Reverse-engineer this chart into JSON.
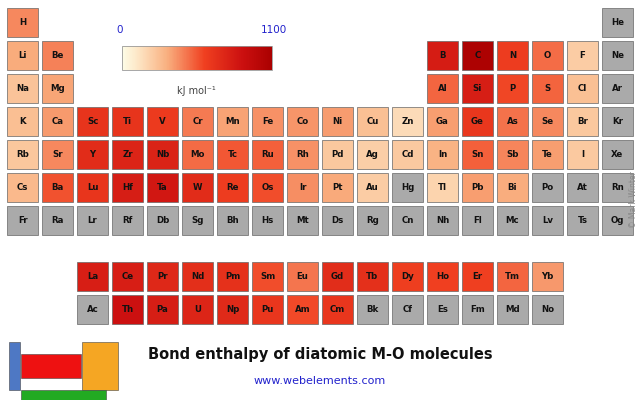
{
  "title": "Bond enthalpy of diatomic M-O molecules",
  "subtitle": "www.webelements.com",
  "colorbar_label": "kJ mol⁻¹",
  "colorbar_min": 0,
  "colorbar_max": 1100,
  "background": "#ffffff",
  "no_data_color": "#aaaaaa",
  "elements": {
    "H": {
      "row": 1,
      "col": 1,
      "value": 428
    },
    "He": {
      "row": 1,
      "col": 18,
      "value": null
    },
    "Li": {
      "row": 2,
      "col": 1,
      "value": 341
    },
    "Be": {
      "row": 2,
      "col": 2,
      "value": 444
    },
    "B": {
      "row": 2,
      "col": 13,
      "value": 809
    },
    "C": {
      "row": 2,
      "col": 14,
      "value": 1076
    },
    "N": {
      "row": 2,
      "col": 15,
      "value": 631
    },
    "O": {
      "row": 2,
      "col": 16,
      "value": 498
    },
    "F": {
      "row": 2,
      "col": 17,
      "value": 220
    },
    "Ne": {
      "row": 2,
      "col": 18,
      "value": null
    },
    "Na": {
      "row": 3,
      "col": 1,
      "value": 257
    },
    "Mg": {
      "row": 3,
      "col": 2,
      "value": 358
    },
    "Al": {
      "row": 3,
      "col": 13,
      "value": 512
    },
    "Si": {
      "row": 3,
      "col": 14,
      "value": 800
    },
    "P": {
      "row": 3,
      "col": 15,
      "value": 589
    },
    "S": {
      "row": 3,
      "col": 16,
      "value": 517
    },
    "Cl": {
      "row": 3,
      "col": 17,
      "value": 268
    },
    "Ar": {
      "row": 3,
      "col": 18,
      "value": null
    },
    "K": {
      "row": 4,
      "col": 1,
      "value": 271
    },
    "Ca": {
      "row": 4,
      "col": 2,
      "value": 383
    },
    "Sc": {
      "row": 4,
      "col": 3,
      "value": 671
    },
    "Ti": {
      "row": 4,
      "col": 4,
      "value": 672
    },
    "V": {
      "row": 4,
      "col": 5,
      "value": 637
    },
    "Cr": {
      "row": 4,
      "col": 6,
      "value": 461
    },
    "Mn": {
      "row": 4,
      "col": 7,
      "value": 362
    },
    "Fe": {
      "row": 4,
      "col": 8,
      "value": 407
    },
    "Co": {
      "row": 4,
      "col": 9,
      "value": 397
    },
    "Ni": {
      "row": 4,
      "col": 10,
      "value": 382
    },
    "Cu": {
      "row": 4,
      "col": 11,
      "value": 269
    },
    "Zn": {
      "row": 4,
      "col": 12,
      "value": 161
    },
    "Ga": {
      "row": 4,
      "col": 13,
      "value": 374
    },
    "Ge": {
      "row": 4,
      "col": 14,
      "value": 657
    },
    "As": {
      "row": 4,
      "col": 15,
      "value": 484
    },
    "Se": {
      "row": 4,
      "col": 16,
      "value": 429
    },
    "Br": {
      "row": 4,
      "col": 17,
      "value": 237
    },
    "Kr": {
      "row": 4,
      "col": 18,
      "value": null
    },
    "Rb": {
      "row": 5,
      "col": 1,
      "value": 243
    },
    "Sr": {
      "row": 5,
      "col": 2,
      "value": 426
    },
    "Y": {
      "row": 5,
      "col": 3,
      "value": 719
    },
    "Zr": {
      "row": 5,
      "col": 4,
      "value": 766
    },
    "Nb": {
      "row": 5,
      "col": 5,
      "value": 771
    },
    "Mo": {
      "row": 5,
      "col": 6,
      "value": 502
    },
    "Tc": {
      "row": 5,
      "col": 7,
      "value": 548
    },
    "Ru": {
      "row": 5,
      "col": 8,
      "value": 528
    },
    "Rh": {
      "row": 5,
      "col": 9,
      "value": 405
    },
    "Pd": {
      "row": 5,
      "col": 10,
      "value": 238
    },
    "Ag": {
      "row": 5,
      "col": 11,
      "value": 213
    },
    "Cd": {
      "row": 5,
      "col": 12,
      "value": 236
    },
    "In": {
      "row": 5,
      "col": 13,
      "value": 320
    },
    "Sn": {
      "row": 5,
      "col": 14,
      "value": 528
    },
    "Sb": {
      "row": 5,
      "col": 15,
      "value": 434
    },
    "Te": {
      "row": 5,
      "col": 16,
      "value": 377
    },
    "I": {
      "row": 5,
      "col": 17,
      "value": 234
    },
    "Xe": {
      "row": 5,
      "col": 18,
      "value": null
    },
    "Cs": {
      "row": 6,
      "col": 1,
      "value": 293
    },
    "Ba": {
      "row": 6,
      "col": 2,
      "value": 562
    },
    "Lu": {
      "row": 6,
      "col": 3,
      "value": 669
    },
    "Hf": {
      "row": 6,
      "col": 4,
      "value": 801
    },
    "Ta": {
      "row": 6,
      "col": 5,
      "value": 839
    },
    "W": {
      "row": 6,
      "col": 6,
      "value": 720
    },
    "Re": {
      "row": 6,
      "col": 7,
      "value": 627
    },
    "Os": {
      "row": 6,
      "col": 8,
      "value": 575
    },
    "Ir": {
      "row": 6,
      "col": 9,
      "value": 414
    },
    "Pt": {
      "row": 6,
      "col": 10,
      "value": 346
    },
    "Au": {
      "row": 6,
      "col": 11,
      "value": 223
    },
    "Hg": {
      "row": 6,
      "col": 12,
      "value": null
    },
    "Tl": {
      "row": 6,
      "col": 13,
      "value": 193
    },
    "Pb": {
      "row": 6,
      "col": 14,
      "value": 374
    },
    "Bi": {
      "row": 6,
      "col": 15,
      "value": 337
    },
    "Po": {
      "row": 6,
      "col": 16,
      "value": null
    },
    "At": {
      "row": 6,
      "col": 17,
      "value": null
    },
    "Rn": {
      "row": 6,
      "col": 18,
      "value": null
    },
    "Fr": {
      "row": 7,
      "col": 1,
      "value": null
    },
    "Ra": {
      "row": 7,
      "col": 2,
      "value": null
    },
    "Lr": {
      "row": 7,
      "col": 3,
      "value": null
    },
    "Rf": {
      "row": 7,
      "col": 4,
      "value": null
    },
    "Db": {
      "row": 7,
      "col": 5,
      "value": null
    },
    "Sg": {
      "row": 7,
      "col": 6,
      "value": null
    },
    "Bh": {
      "row": 7,
      "col": 7,
      "value": null
    },
    "Hs": {
      "row": 7,
      "col": 8,
      "value": null
    },
    "Mt": {
      "row": 7,
      "col": 9,
      "value": null
    },
    "Ds": {
      "row": 7,
      "col": 10,
      "value": null
    },
    "Rg": {
      "row": 7,
      "col": 11,
      "value": null
    },
    "Cn": {
      "row": 7,
      "col": 12,
      "value": null
    },
    "Nh": {
      "row": 7,
      "col": 13,
      "value": null
    },
    "Fl": {
      "row": 7,
      "col": 14,
      "value": null
    },
    "Mc": {
      "row": 7,
      "col": 15,
      "value": null
    },
    "Lv": {
      "row": 7,
      "col": 16,
      "value": null
    },
    "Ts": {
      "row": 7,
      "col": 17,
      "value": null
    },
    "Og": {
      "row": 7,
      "col": 18,
      "value": null
    },
    "La": {
      "row": 8,
      "col": 3,
      "value": 798
    },
    "Ce": {
      "row": 8,
      "col": 4,
      "value": 795
    },
    "Pr": {
      "row": 8,
      "col": 5,
      "value": 740
    },
    "Nd": {
      "row": 8,
      "col": 6,
      "value": 703
    },
    "Pm": {
      "row": 8,
      "col": 7,
      "value": 690
    },
    "Sm": {
      "row": 8,
      "col": 8,
      "value": 573
    },
    "Eu": {
      "row": 8,
      "col": 9,
      "value": 473
    },
    "Gd": {
      "row": 8,
      "col": 10,
      "value": 715
    },
    "Tb": {
      "row": 8,
      "col": 11,
      "value": 694
    },
    "Dy": {
      "row": 8,
      "col": 12,
      "value": 615
    },
    "Ho": {
      "row": 8,
      "col": 13,
      "value": 607
    },
    "Er": {
      "row": 8,
      "col": 14,
      "value": 611
    },
    "Tm": {
      "row": 8,
      "col": 15,
      "value": 514
    },
    "Yb": {
      "row": 8,
      "col": 16,
      "value": 387
    },
    "Ac": {
      "row": 9,
      "col": 3,
      "value": null
    },
    "Th": {
      "row": 9,
      "col": 4,
      "value": 877
    },
    "Pa": {
      "row": 9,
      "col": 5,
      "value": 800
    },
    "U": {
      "row": 9,
      "col": 6,
      "value": 757
    },
    "Np": {
      "row": 9,
      "col": 7,
      "value": 731
    },
    "Pu": {
      "row": 9,
      "col": 8,
      "value": 659
    },
    "Am": {
      "row": 9,
      "col": 9,
      "value": 582
    },
    "Cm": {
      "row": 9,
      "col": 10,
      "value": 661
    },
    "Bk": {
      "row": 9,
      "col": 11,
      "value": null
    },
    "Cf": {
      "row": 9,
      "col": 12,
      "value": null
    },
    "Es": {
      "row": 9,
      "col": 13,
      "value": null
    },
    "Fm": {
      "row": 9,
      "col": 14,
      "value": null
    },
    "Md": {
      "row": 9,
      "col": 15,
      "value": null
    },
    "No": {
      "row": 9,
      "col": 16,
      "value": null
    }
  },
  "legend_colors": {
    "s": "#4e78c4",
    "d": "#ee1111",
    "p": "#f5a623",
    "f": "#22aa22"
  },
  "credit": "© Mark Winter",
  "cmap_nodes": [
    [
      0.0,
      "#fdfde8"
    ],
    [
      0.1,
      "#fde8c8"
    ],
    [
      0.3,
      "#f9b080"
    ],
    [
      0.55,
      "#f04020"
    ],
    [
      0.8,
      "#cc1010"
    ],
    [
      1.0,
      "#aa0000"
    ]
  ]
}
